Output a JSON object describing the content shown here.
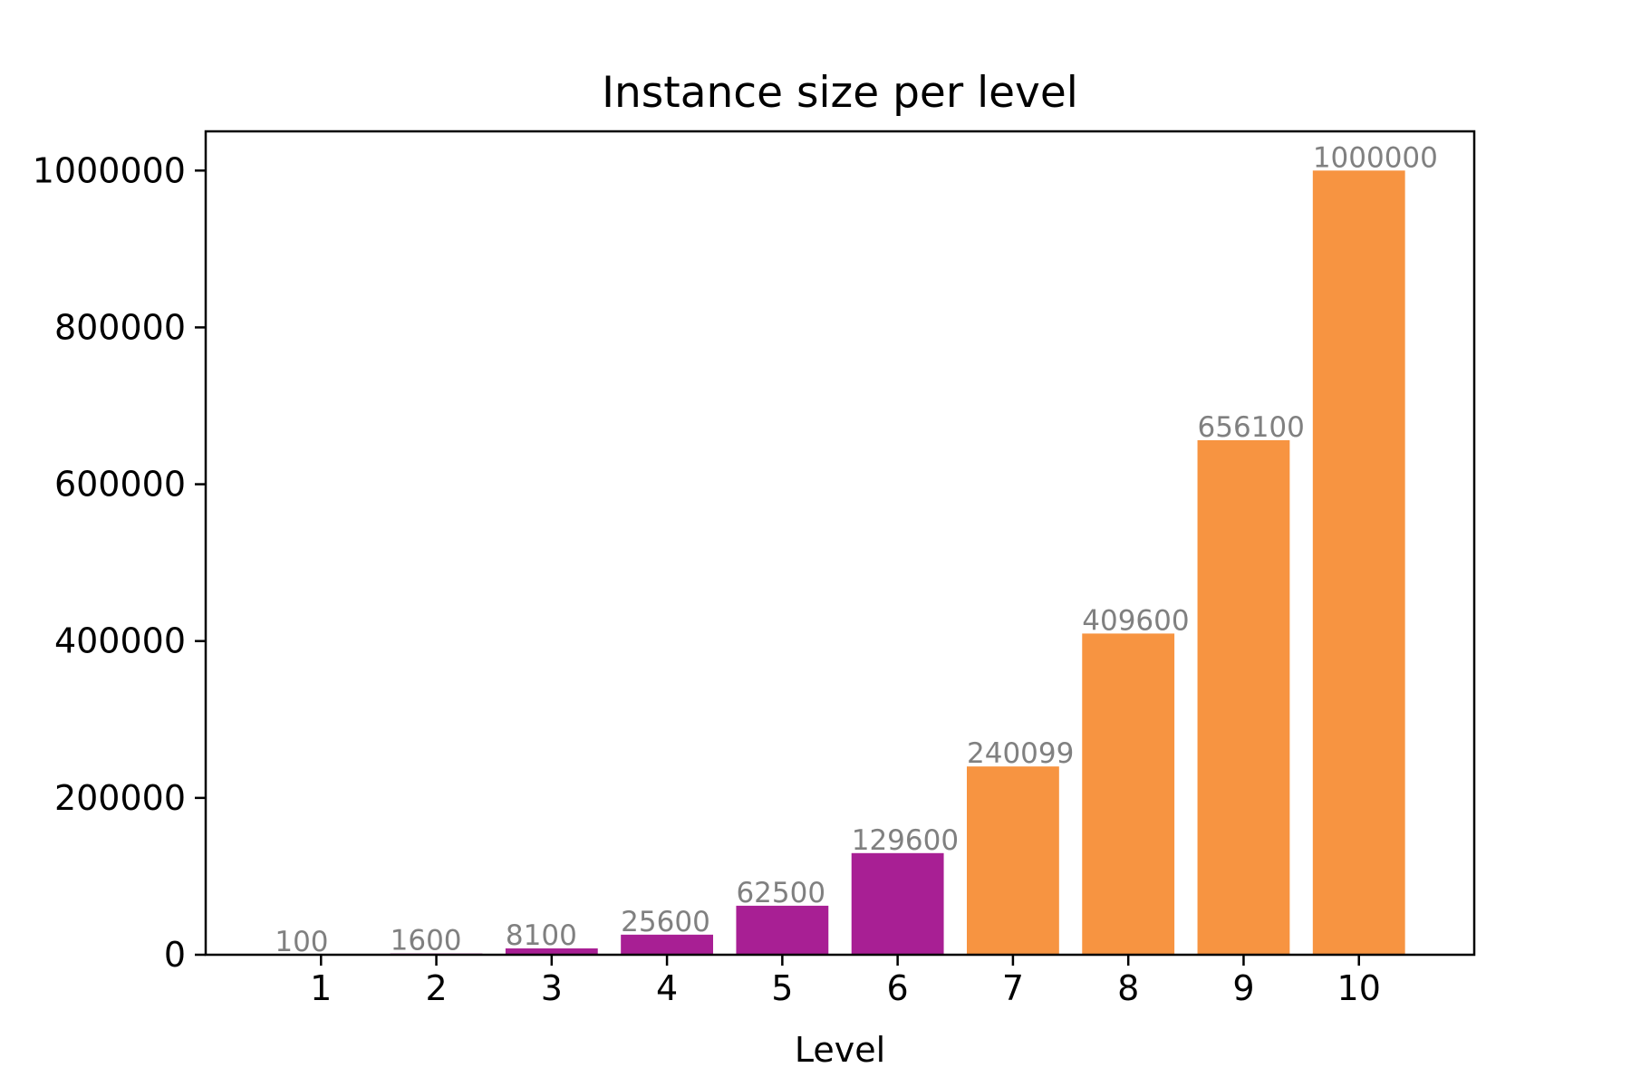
{
  "chart_data": {
    "type": "bar",
    "title": "Instance size per level",
    "xlabel": "Level",
    "ylabel": "",
    "categories": [
      "1",
      "2",
      "3",
      "4",
      "5",
      "6",
      "7",
      "8",
      "9",
      "10"
    ],
    "values": [
      100,
      1600,
      8100,
      25600,
      62500,
      129600,
      240099,
      409600,
      656100,
      1000000
    ],
    "data_labels": [
      "100",
      "1600",
      "8100",
      "25600",
      "62500",
      "129600",
      "240099",
      "409600",
      "656100",
      "1000000"
    ],
    "bar_colors": [
      "#a81f94",
      "#a81f94",
      "#a81f94",
      "#a81f94",
      "#a81f94",
      "#a81f94",
      "#f79441",
      "#f79441",
      "#f79441",
      "#f79441"
    ],
    "ylim": [
      0,
      1050000
    ],
    "yticks": [
      0,
      200000,
      400000,
      600000,
      800000,
      1000000
    ],
    "ytick_labels": [
      "0",
      "200000",
      "400000",
      "600000",
      "800000",
      "1000000"
    ],
    "grid": false,
    "legend": "none",
    "data_label_color": "#808080"
  }
}
